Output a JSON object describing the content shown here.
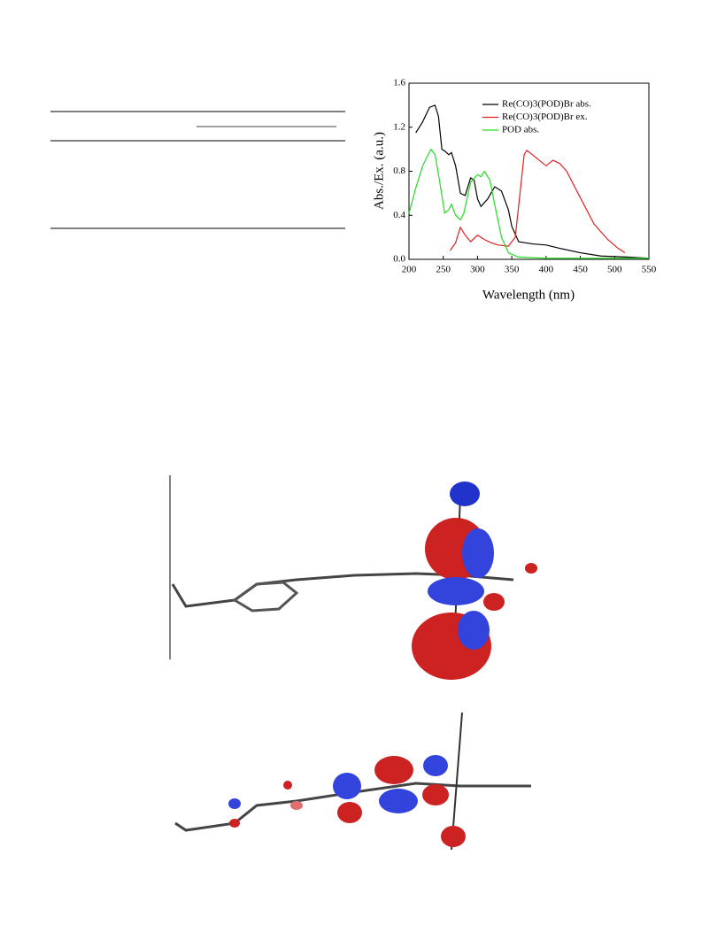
{
  "chart_data": {
    "type": "line",
    "xlabel": "Wavelength (nm)",
    "ylabel": "Abs./Ex. (a.u.)",
    "xlim": [
      200,
      550
    ],
    "xticks": [
      200,
      250,
      300,
      350,
      400,
      450,
      500,
      550
    ],
    "ylim": [
      0,
      1.6
    ],
    "yticks": [
      {
        "value": 0,
        "label": "0.0"
      },
      {
        "value": 0.4,
        "label": "0.4"
      },
      {
        "value": 0.8,
        "label": "0.8"
      },
      {
        "value": 1.2,
        "label": "1.2"
      },
      {
        "value": 1.6,
        "label": "1.6"
      }
    ],
    "legend": "upper right",
    "series": [
      {
        "name": "Re(CO)3(POD)Br abs.",
        "color": "#000000",
        "x": [
          210,
          220,
          230,
          238,
          243,
          248,
          253,
          258,
          262,
          268,
          275,
          282,
          290,
          295,
          300,
          305,
          315,
          325,
          335,
          345,
          350,
          360,
          380,
          400,
          420,
          450,
          480,
          520,
          550
        ],
        "values": [
          1.15,
          1.25,
          1.38,
          1.4,
          1.3,
          1.0,
          0.98,
          0.95,
          0.97,
          0.85,
          0.6,
          0.58,
          0.74,
          0.72,
          0.55,
          0.48,
          0.55,
          0.66,
          0.62,
          0.45,
          0.3,
          0.16,
          0.14,
          0.13,
          0.1,
          0.06,
          0.03,
          0.02,
          0.01
        ]
      },
      {
        "name": "Re(CO)3(POD)Br ex.",
        "color": "#e02020",
        "x": [
          260,
          268,
          275,
          282,
          290,
          300,
          310,
          320,
          330,
          345,
          355,
          362,
          368,
          372,
          380,
          390,
          400,
          410,
          420,
          430,
          440,
          455,
          470,
          490,
          505,
          515
        ],
        "values": [
          0.08,
          0.15,
          0.29,
          0.22,
          0.16,
          0.22,
          0.18,
          0.15,
          0.13,
          0.12,
          0.2,
          0.6,
          0.95,
          0.99,
          0.95,
          0.9,
          0.85,
          0.9,
          0.87,
          0.8,
          0.68,
          0.5,
          0.32,
          0.18,
          0.1,
          0.06
        ]
      },
      {
        "name": "POD abs.",
        "color": "#22dd22",
        "x": [
          200,
          210,
          220,
          232,
          238,
          245,
          252,
          258,
          262,
          268,
          275,
          280,
          290,
          300,
          305,
          310,
          318,
          325,
          335,
          345,
          360,
          400,
          550
        ],
        "values": [
          0.42,
          0.65,
          0.85,
          1.0,
          0.95,
          0.7,
          0.42,
          0.45,
          0.5,
          0.4,
          0.36,
          0.42,
          0.7,
          0.77,
          0.75,
          0.8,
          0.72,
          0.5,
          0.2,
          0.06,
          0.02,
          0.01,
          0.01
        ]
      }
    ]
  }
}
